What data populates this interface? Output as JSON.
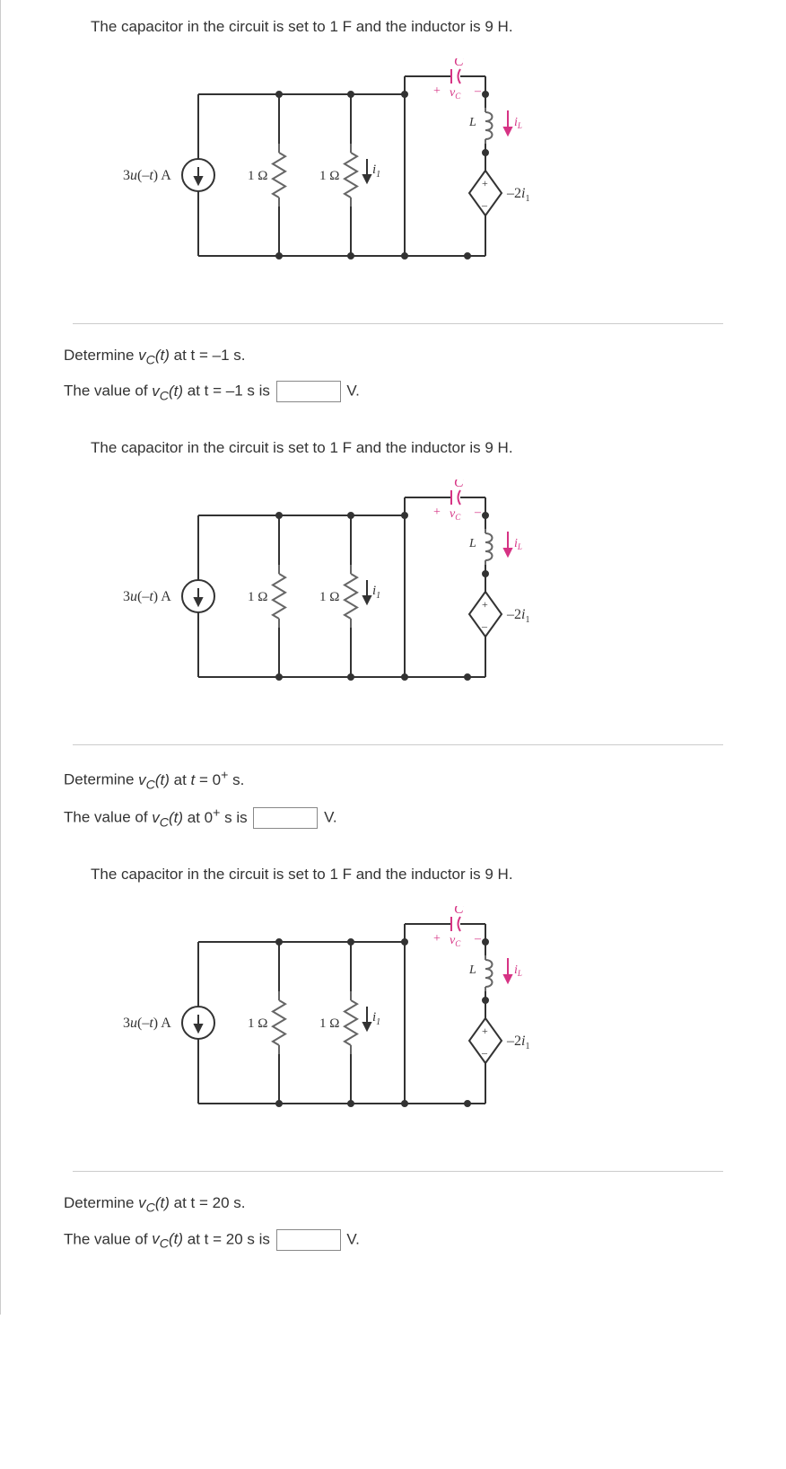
{
  "problems": [
    {
      "intro": "The capacitor in the circuit is set to 1 F and the inductor is 9 H.",
      "question_prefix": "Determine ",
      "question_var": "v",
      "question_sub": "C",
      "question_arg": "(t)",
      "question_at": " at t = –1 s.",
      "answer_prefix": "The value of ",
      "answer_at": " at t = –1 s is ",
      "answer_unit": " V."
    },
    {
      "intro": "The capacitor in the circuit is set to 1 F and the inductor is 9 H.",
      "question_prefix": "Determine ",
      "question_var": "v",
      "question_sub": "C",
      "question_arg": "(t)",
      "question_at_html": " at <i>t</i> = 0<sup>+</sup> s.",
      "answer_prefix": "The value of ",
      "answer_at_html": " at 0<sup>+</sup> s is ",
      "answer_unit": " V."
    },
    {
      "intro": "The capacitor in the circuit is set to 1 F and the inductor is 9 H.",
      "question_prefix": "Determine ",
      "question_var": "v",
      "question_sub": "C",
      "question_arg": "(t)",
      "question_at": " at t = 20 s.",
      "answer_prefix": "The value of ",
      "answer_at": " at t = 20 s is ",
      "answer_unit": " V."
    }
  ],
  "circuit": {
    "source_label": "3u(–t) A",
    "r1_label": "1 Ω",
    "r2_label": "1 Ω",
    "i1_label": "i",
    "i1_sub": "1",
    "c_label": "C",
    "vc_label": "v",
    "vc_sub": "C",
    "l_label": "L",
    "il_label": "i",
    "il_sub": "L",
    "dep_label": "–2i",
    "dep_sub": "1",
    "colors": {
      "wire": "#333333",
      "resistor": "#666666",
      "capacitor": "#d63384",
      "vc_text": "#d63384",
      "inductor": "#666666",
      "il_text": "#d63384",
      "label_text": "#333333",
      "source_text": "#333333",
      "dep_text": "#333333",
      "c_text": "#d63384"
    },
    "stroke_width": 2
  }
}
